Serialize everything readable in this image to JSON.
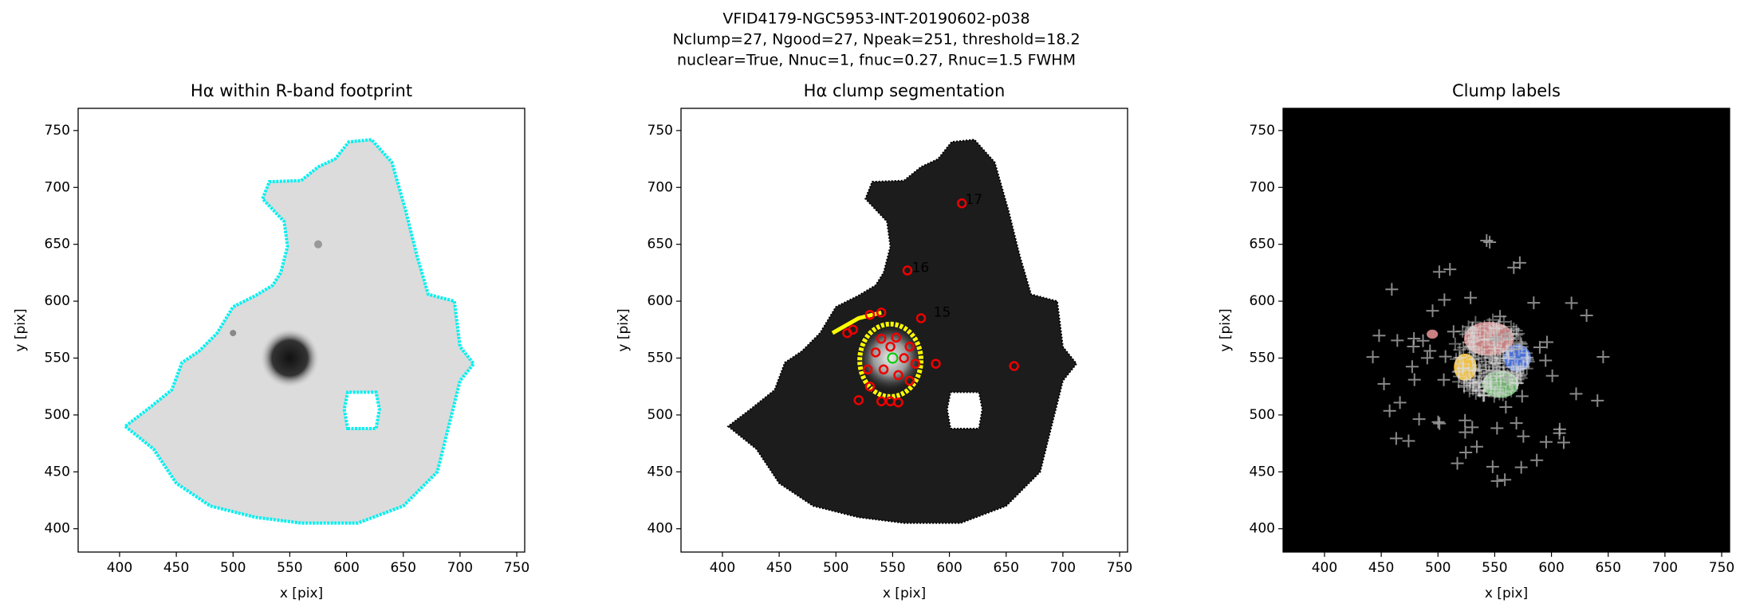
{
  "figure": {
    "title_lines": [
      "VFID4179-NGC5953-INT-20190602-p038",
      "Nclump=27, Ngood=27, Npeak=251, threshold=18.2",
      "nuclear=True, Nnuc=1, fnuc=0.27, Rnuc=1.5 FWHM"
    ]
  },
  "chart_data": [
    {
      "type": "image",
      "title": "Hα within R-band footprint",
      "xlabel": "x [pix]",
      "ylabel": "y [pix]",
      "xlim": [
        363.5,
        757
      ],
      "ylim": [
        379.5,
        769.5
      ],
      "xticks": [
        400,
        450,
        500,
        550,
        600,
        650,
        700,
        750
      ],
      "yticks": [
        400,
        450,
        500,
        550,
        600,
        650,
        700,
        750
      ]
    },
    {
      "type": "image",
      "title": "Hα clump segmentation",
      "xlabel": "x [pix]",
      "ylabel": "y [pix]",
      "xlim": [
        363.5,
        757
      ],
      "ylim": [
        379.5,
        769.5
      ],
      "xticks": [
        400,
        450,
        500,
        550,
        600,
        650,
        700,
        750
      ],
      "yticks": [
        400,
        450,
        500,
        550,
        600,
        650,
        700,
        750
      ],
      "annotations": [
        "17",
        "16",
        "15"
      ]
    },
    {
      "type": "image",
      "title": "Clump labels",
      "xlabel": "x [pix]",
      "ylabel": "y [pix]",
      "xlim": [
        363.5,
        757
      ],
      "ylim": [
        379.5,
        769.5
      ],
      "xticks": [
        400,
        450,
        500,
        550,
        600,
        650,
        700,
        750
      ],
      "yticks": [
        400,
        450,
        500,
        550,
        600,
        650,
        700,
        750
      ]
    }
  ]
}
